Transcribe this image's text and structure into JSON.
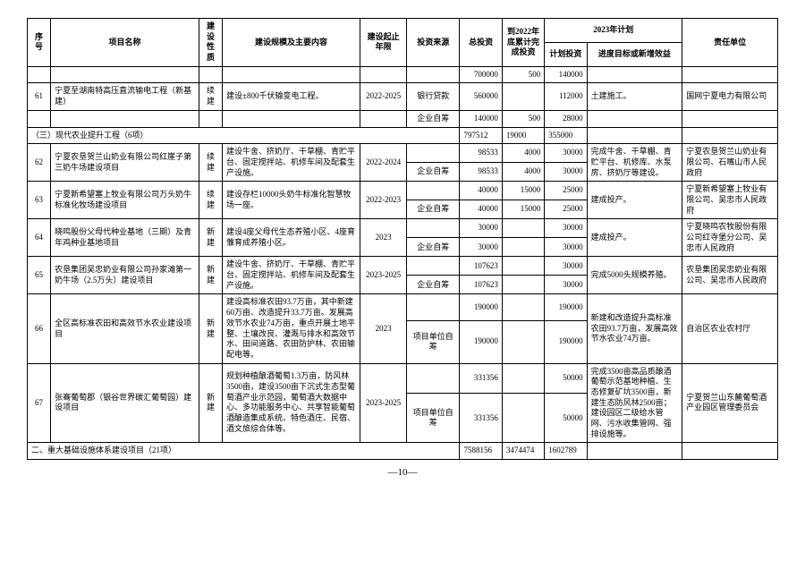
{
  "headers": {
    "seq": "序号",
    "name": "项目名称",
    "type": "建设性质",
    "scale": "建设规模及主要内容",
    "period": "建设起止年限",
    "source": "投资来源",
    "total": "总投资",
    "cumulative": "到2022年底累计完成投资",
    "plan2023": "2023年计划",
    "planInvest": "计划投资",
    "progress": "进度目标或新增效益",
    "responsible": "责任单位"
  },
  "rows": [
    {
      "seq": "",
      "name": "",
      "type": "",
      "scale": "",
      "period": "",
      "source": "",
      "total": "700000",
      "cum": "500",
      "plan": "140000",
      "prog": "",
      "resp": "",
      "rowspan": {}
    },
    {
      "seq": "61",
      "name": "宁夏至湖南特高压直流输电工程（新基建）",
      "type": "续建",
      "scale": "建设±800千伏输变电工程。",
      "period": "2022-2025",
      "source": "银行贷款",
      "total": "560000",
      "cum": "",
      "plan": "112000",
      "prog": "土建施工。",
      "resp": "国网宁夏电力有限公司"
    },
    {
      "seq": "",
      "name": "",
      "type": "",
      "scale": "",
      "period": "",
      "source": "企业自筹",
      "total": "140000",
      "cum": "500",
      "plan": "28000",
      "prog": "",
      "resp": ""
    },
    {
      "section": true,
      "label": "（三）现代农业提升工程（6项）",
      "total": "797512",
      "cum": "19000",
      "plan": "355000"
    },
    {
      "seq": "62",
      "name": "宁夏农垦贺兰山奶业有限公司红崖子第三奶牛场建设项目",
      "type": "续建",
      "scale": "建设牛舍、挤奶厅、干草棚、青贮平台、固定搅拌站、机修车间及配套生产设施。",
      "period": "2022-2024",
      "source": "",
      "total": "98533",
      "cum": "4000",
      "plan": "30000",
      "prog": "完成牛舍、干草棚、青贮平台、机修库、水泵房、挤奶厅等建设。",
      "resp": "宁夏农垦贺兰山奶业有限公司、石嘴山市人民政府",
      "rowspan": {
        "seq": 2,
        "name": 2,
        "type": 2,
        "scale": 2,
        "period": 2,
        "prog": 2,
        "resp": 2
      }
    },
    {
      "source": "企业自筹",
      "total": "98533",
      "cum": "4000",
      "plan": "30000"
    },
    {
      "seq": "63",
      "name": "宁夏新希望塞上牧业有限公司万头奶牛标准化牧场建设项目",
      "type": "续建",
      "scale": "建设存栏10000头奶牛标准化智慧牧场一座。",
      "period": "2022-2023",
      "source": "",
      "total": "40000",
      "cum": "15000",
      "plan": "25000",
      "prog": "建成投产。",
      "resp": "宁夏新希望塞上牧业有限公司、吴忠市人民政府",
      "rowspan": {
        "seq": 2,
        "name": 2,
        "type": 2,
        "scale": 2,
        "period": 2,
        "prog": 2,
        "resp": 2
      }
    },
    {
      "source": "企业自筹",
      "total": "40000",
      "cum": "15000",
      "plan": "25000"
    },
    {
      "seq": "64",
      "name": "晓鸣股份父母代种业基地（三期）及青年鸡种业基地项目",
      "type": "新建",
      "scale": "建设4座父母代生态养殖小区、4座育雏育成养殖小区。",
      "period": "2023",
      "source": "",
      "total": "30000",
      "cum": "",
      "plan": "30000",
      "prog": "建成投产。",
      "resp": "宁夏晓鸣农牧股份有限公司红寺堡分公司、吴忠市人民政府",
      "rowspan": {
        "seq": 2,
        "name": 2,
        "type": 2,
        "scale": 2,
        "period": 2,
        "prog": 2,
        "resp": 2
      }
    },
    {
      "source": "企业自筹",
      "total": "30000",
      "cum": "",
      "plan": "30000"
    },
    {
      "seq": "65",
      "name": "农垦集团吴忠奶业有限公司孙家滩第一奶牛场（2.5万头）建设项目",
      "type": "新建",
      "scale": "建设牛舍、挤奶厅、干草棚、青贮平台、固定搅拌站、机修车间及配套生产设施。",
      "period": "2023-2025",
      "source": "",
      "total": "107623",
      "cum": "",
      "plan": "30000",
      "prog": "完成5000头规模养殖。",
      "resp": "农垦集团吴忠奶业有限公司、吴忠市人民政府",
      "rowspan": {
        "seq": 2,
        "name": 2,
        "type": 2,
        "scale": 2,
        "period": 2,
        "prog": 2,
        "resp": 2
      }
    },
    {
      "source": "企业自筹",
      "total": "107623",
      "cum": "",
      "plan": "30000"
    },
    {
      "seq": "66",
      "name": "全区高标准农田和高效节水农业建设项目",
      "type": "新建",
      "scale": "建设高标准农田93.7万亩，其中新建60万亩、改造提升33.7万亩。发展高效节水农业74万亩，重点开展土地平整、土壤改良、灌溉与排水和高效节水、田间道路、农田防护林、农田输配电等。",
      "period": "2023",
      "source": "",
      "total": "190000",
      "cum": "",
      "plan": "190000",
      "prog": "新建和改造提升高标准农田93.7万亩，发展高效节水农业74万亩。",
      "resp": "自治区农业农村厅",
      "rowspan": {
        "seq": 2,
        "name": 2,
        "type": 2,
        "scale": 2,
        "period": 2,
        "prog": 2,
        "resp": 2
      }
    },
    {
      "source": "项目单位自筹",
      "total": "190000",
      "cum": "",
      "plan": "190000"
    },
    {
      "seq": "67",
      "name": "张骞葡萄郡（银谷世界碳汇葡萄园）建设项目",
      "type": "新建",
      "scale": "规划种植酿酒葡萄1.3万亩，防风林3500亩，建设3500亩下沉式生态型葡萄酒产业示范园，葡萄酒大数据中心、多功能服务中心、共享智能葡萄酒酿造集成系统、特色酒庄、民宿、酒文旅综合体等。",
      "period": "2023-2025",
      "source": "",
      "total": "331356",
      "cum": "",
      "plan": "50000",
      "prog": "完成3500亩高品质酿酒葡萄示范基地种植、生态修复矿坑3500亩，新建生态防风林2500亩；建设园区二级给水管网、污水收集管网、强排设施等。",
      "resp": "宁夏贺兰山东麓葡萄酒产业园区管理委员会",
      "rowspan": {
        "seq": 2,
        "name": 2,
        "type": 2,
        "scale": 2,
        "period": 2,
        "prog": 2,
        "resp": 2
      }
    },
    {
      "source": "项目单位自筹",
      "total": "331356",
      "cum": "",
      "plan": "50000"
    },
    {
      "section": true,
      "label": "二、重大基础设施体系建设项目（21项）",
      "total": "7588156",
      "cum": "3474474",
      "plan": "1602789"
    }
  ],
  "pageNumber": "—10—"
}
